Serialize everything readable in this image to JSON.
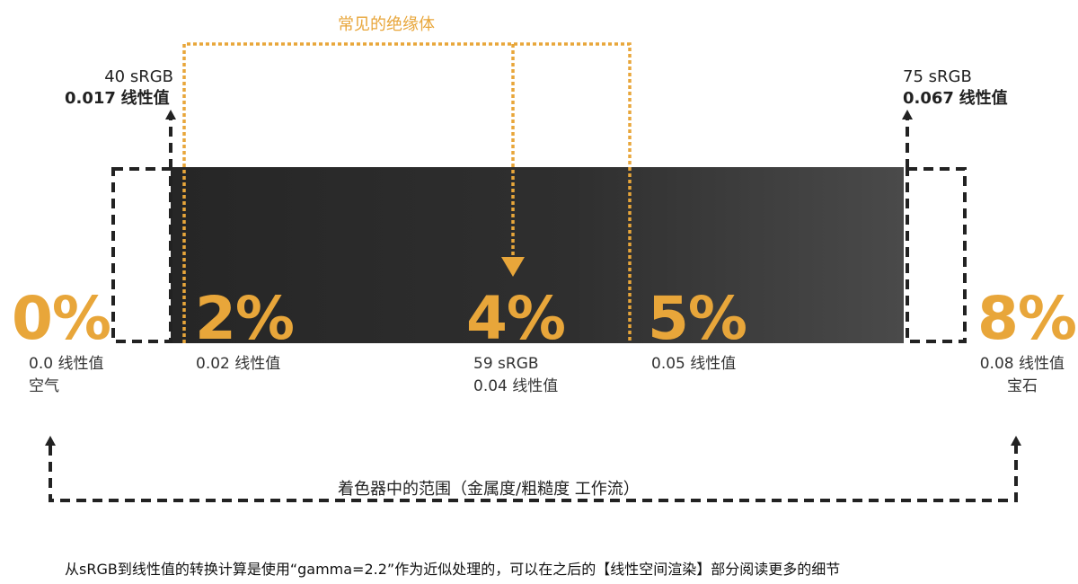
{
  "insulators_title": "常见的绝缘体",
  "left_top": {
    "srgb": "40 sRGB",
    "linear_num": "0.017",
    "linear_word": "线性值"
  },
  "right_top": {
    "srgb": "75 sRGB",
    "linear_num": "0.067",
    "linear_word": "线性值"
  },
  "markers": [
    {
      "percent": "0%",
      "line1": "0.0 线性值",
      "line2": "空气"
    },
    {
      "percent": "2%",
      "line1": "0.02  线性值",
      "line2": ""
    },
    {
      "percent": "4%",
      "line1": "59 sRGB",
      "line2": "0.04  线性值"
    },
    {
      "percent": "5%",
      "line1": "0.05  线性值",
      "line2": ""
    },
    {
      "percent": "8%",
      "line1": "0.08 线性值",
      "line2": "宝石"
    }
  ],
  "shader_range": "着色器中的范围（金属度/粗糙度 工作流）",
  "footnote": "从sRGB到线性值的转换计算是使用“gamma=2.2”作为近似处理的，可以在之后的【线性空间渲染】部分阅读更多的细节",
  "colors": {
    "accent": "#e8a63a",
    "dark": "#222222",
    "bar_left": "#262626",
    "bar_right": "#4a4a4a"
  }
}
